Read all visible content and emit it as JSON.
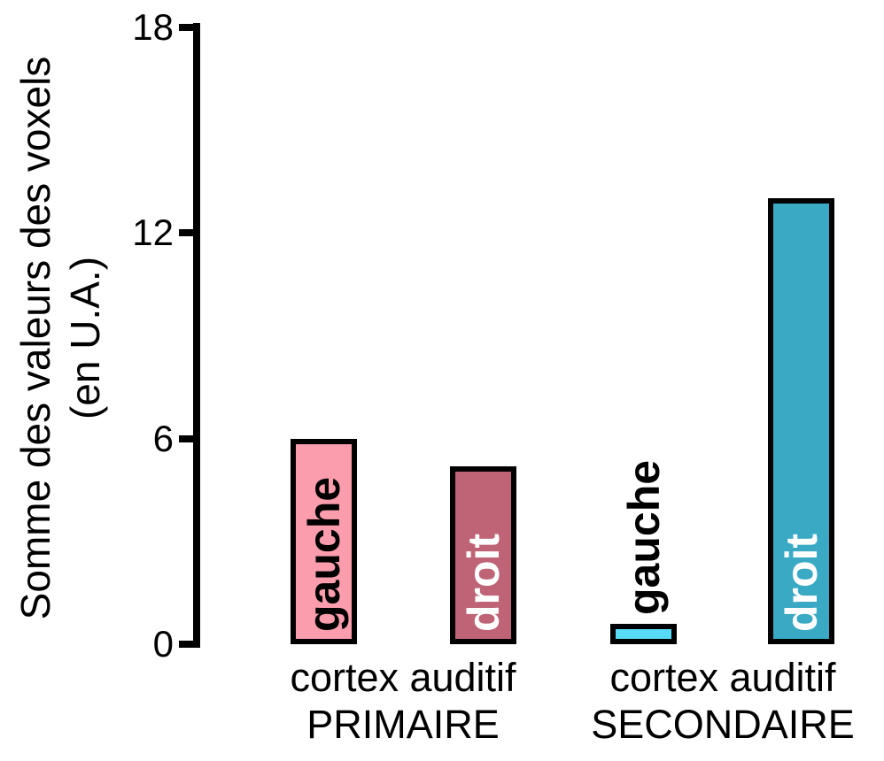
{
  "chart_data": {
    "type": "bar",
    "title": "",
    "ylabel_line1": "Somme des valeurs des voxels",
    "ylabel_line2": "(en U.A.)",
    "ylabel": "Somme des valeurs des voxels (en U.A.)",
    "ylim": [
      0,
      18
    ],
    "yticks": [
      0,
      6,
      12,
      18
    ],
    "grid": false,
    "legend": "none",
    "background": "#FFFFFF",
    "axis_color": "#000000",
    "bar_border_color": "#000000",
    "groups": [
      {
        "category_line1": "cortex auditif",
        "category_line2": "PRIMAIRE",
        "bars": [
          {
            "label": "gauche",
            "value": 6.0,
            "fill": "#FB9DAD",
            "label_color": "#000000",
            "label_position": "inside"
          },
          {
            "label": "droit",
            "value": 5.2,
            "fill": "#BE6476",
            "label_color": "#FFFFFF",
            "label_position": "inside"
          }
        ]
      },
      {
        "category_line1": "cortex auditif",
        "category_line2": "SECONDAIRE",
        "bars": [
          {
            "label": "gauche",
            "value": 0.6,
            "fill": "#57DBF8",
            "label_color": "#000000",
            "label_position": "above"
          },
          {
            "label": "droit",
            "value": 13.0,
            "fill": "#3AA9C4",
            "label_color": "#FFFFFF",
            "label_position": "inside"
          }
        ]
      }
    ]
  }
}
